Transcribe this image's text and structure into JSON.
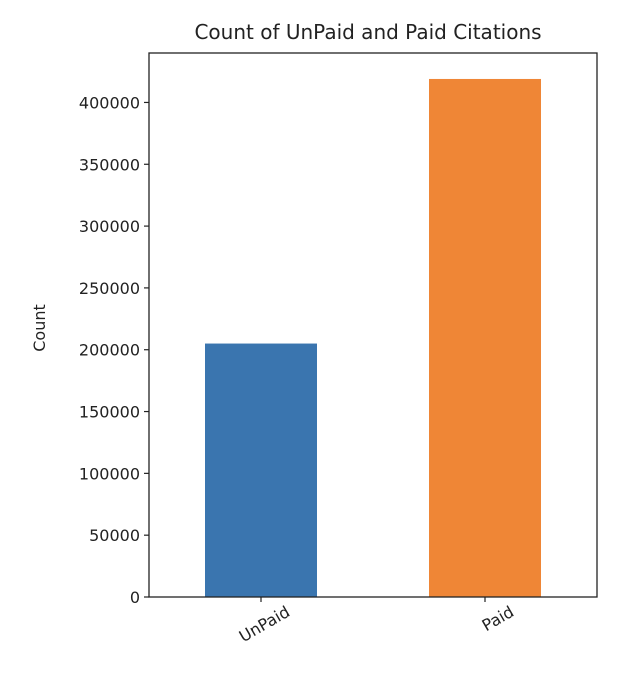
{
  "chart_data": {
    "type": "bar",
    "title": "Count of UnPaid and Paid Citations",
    "xlabel": "",
    "ylabel": "Count",
    "categories": [
      "UnPaid",
      "Paid"
    ],
    "values": [
      205000,
      419000
    ],
    "bar_colors": [
      "#3a75af",
      "#ef8636"
    ],
    "ylim": [
      0,
      440000
    ],
    "yticks": [
      0,
      50000,
      100000,
      150000,
      200000,
      250000,
      300000,
      350000,
      400000
    ],
    "ytick_labels": [
      "0",
      "50000",
      "100000",
      "150000",
      "200000",
      "250000",
      "300000",
      "350000",
      "400000"
    ],
    "grid": false,
    "legend": false
  }
}
